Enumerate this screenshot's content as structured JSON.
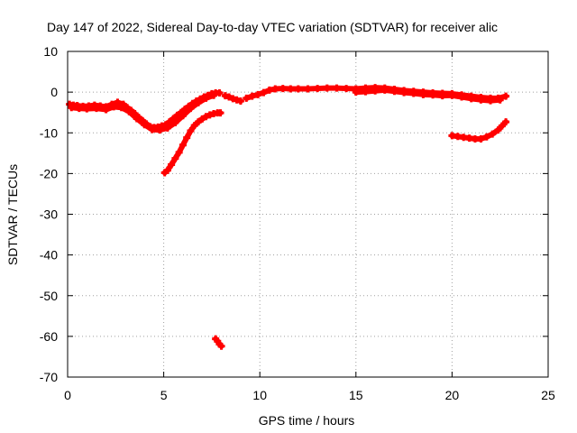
{
  "chart_data": {
    "type": "scatter",
    "title": "Day 147 of 2022, Sidereal Day-to-day VTEC variation (SDTVAR) for receiver alic",
    "xlabel": "GPS time / hours",
    "ylabel": "SDTVAR / TECUs",
    "xlim": [
      0,
      25
    ],
    "ylim": [
      -70,
      10
    ],
    "xticks": [
      0,
      5,
      10,
      15,
      20,
      25
    ],
    "xtick_labels": [
      "0",
      "5",
      "10",
      "15",
      "20",
      "25"
    ],
    "yticks": [
      10,
      0,
      -10,
      -20,
      -30,
      -40,
      -50,
      -60,
      -70
    ],
    "ytick_labels": [
      "10",
      "0",
      "-10",
      "-20",
      "-30",
      "-40",
      "-50",
      "-60",
      "-70"
    ],
    "grid": true,
    "marker": "plus",
    "color": "#ff0000",
    "series": [
      {
        "name": "main-arc",
        "x": [
          0.1,
          0.3,
          0.5,
          0.8,
          1.1,
          1.4,
          1.7,
          2.0,
          2.3,
          2.6,
          2.9,
          3.1,
          3.3,
          3.5,
          3.7,
          3.9,
          4.1,
          4.3,
          4.5,
          4.7,
          4.9,
          5.1,
          5.3,
          5.5,
          5.7,
          5.9,
          6.1,
          6.3,
          6.5,
          6.7,
          6.9,
          7.1,
          7.3,
          7.5,
          7.7,
          7.9
        ],
        "y": [
          -3.0,
          -3.2,
          -3.3,
          -3.5,
          -3.4,
          -3.2,
          -3.4,
          -3.6,
          -3.0,
          -2.5,
          -3.0,
          -3.8,
          -4.5,
          -5.3,
          -6.2,
          -7.0,
          -7.8,
          -8.5,
          -8.7,
          -8.6,
          -8.3,
          -8.0,
          -7.3,
          -6.5,
          -5.7,
          -5.0,
          -4.2,
          -3.5,
          -2.8,
          -2.2,
          -1.7,
          -1.2,
          -0.8,
          -0.4,
          -0.2,
          -0.2
        ]
      },
      {
        "name": "main-arc-lower-band",
        "x": [
          0.2,
          0.6,
          1.0,
          1.5,
          2.0,
          2.4,
          2.8,
          3.2,
          3.6,
          4.0,
          4.4,
          4.8,
          5.2,
          5.6,
          6.0,
          6.4,
          6.8,
          7.2,
          7.6
        ],
        "y": [
          -3.8,
          -4.0,
          -4.1,
          -4.0,
          -4.3,
          -3.6,
          -3.8,
          -4.8,
          -6.5,
          -8.0,
          -9.2,
          -9.3,
          -8.8,
          -7.5,
          -5.8,
          -4.0,
          -2.6,
          -1.5,
          -0.8
        ]
      },
      {
        "name": "rising-branch",
        "x": [
          5.05,
          5.2,
          5.4,
          5.6,
          5.8,
          6.0,
          6.2,
          6.4,
          6.6,
          6.8,
          7.0,
          7.2,
          7.4,
          7.6,
          7.8,
          7.95
        ],
        "y": [
          -19.8,
          -19.2,
          -17.8,
          -16.3,
          -14.8,
          -13.0,
          -11.2,
          -9.5,
          -8.2,
          -7.3,
          -6.6,
          -6.0,
          -5.6,
          -5.3,
          -5.1,
          -5.1
        ]
      },
      {
        "name": "outlier",
        "x": [
          7.7,
          7.8,
          7.9,
          8.0
        ],
        "y": [
          -60.6,
          -61.2,
          -61.9,
          -62.4
        ]
      },
      {
        "name": "gap-fragment",
        "x": [
          8.2,
          8.4,
          8.6,
          8.8,
          9.0
        ],
        "y": [
          -0.9,
          -1.2,
          -1.6,
          -1.9,
          -2.2
        ]
      },
      {
        "name": "upper-plateau",
        "x": [
          9.3,
          9.6,
          9.9,
          10.2,
          10.5,
          10.8,
          11.2,
          11.6,
          12.0,
          12.5,
          13.0,
          13.5,
          14.0,
          14.5,
          15.0,
          15.5,
          16.0,
          16.5,
          17.0,
          17.5,
          18.0,
          18.5,
          19.0,
          19.5,
          20.0,
          20.5,
          21.0,
          21.5,
          22.0,
          22.4,
          22.8
        ],
        "y": [
          -1.5,
          -1.0,
          -0.6,
          -0.1,
          0.5,
          0.8,
          0.9,
          0.8,
          0.8,
          0.8,
          0.9,
          1.0,
          1.0,
          0.9,
          0.8,
          1.0,
          1.1,
          1.0,
          0.7,
          0.4,
          0.2,
          0.0,
          -0.2,
          -0.3,
          -0.4,
          -0.7,
          -1.0,
          -1.3,
          -1.5,
          -1.5,
          -1.0
        ]
      },
      {
        "name": "upper-plateau-band",
        "x": [
          15.0,
          15.5,
          16.0,
          16.5,
          17.0,
          17.5,
          18.0,
          18.5,
          19.0,
          19.5,
          20.0,
          20.5,
          21.0,
          21.5,
          22.0,
          22.5
        ],
        "y": [
          0.0,
          0.1,
          0.3,
          0.5,
          0.2,
          -0.1,
          -0.3,
          -0.6,
          -0.7,
          -0.9,
          -0.8,
          -1.2,
          -1.6,
          -1.9,
          -2.1,
          -1.9
        ]
      },
      {
        "name": "late-segment",
        "x": [
          20.0,
          20.3,
          20.6,
          20.9,
          21.2,
          21.5,
          21.8,
          22.1,
          22.4,
          22.6,
          22.8
        ],
        "y": [
          -10.7,
          -10.9,
          -11.1,
          -11.3,
          -11.5,
          -11.5,
          -11.0,
          -10.3,
          -9.3,
          -8.3,
          -7.3
        ]
      }
    ]
  }
}
